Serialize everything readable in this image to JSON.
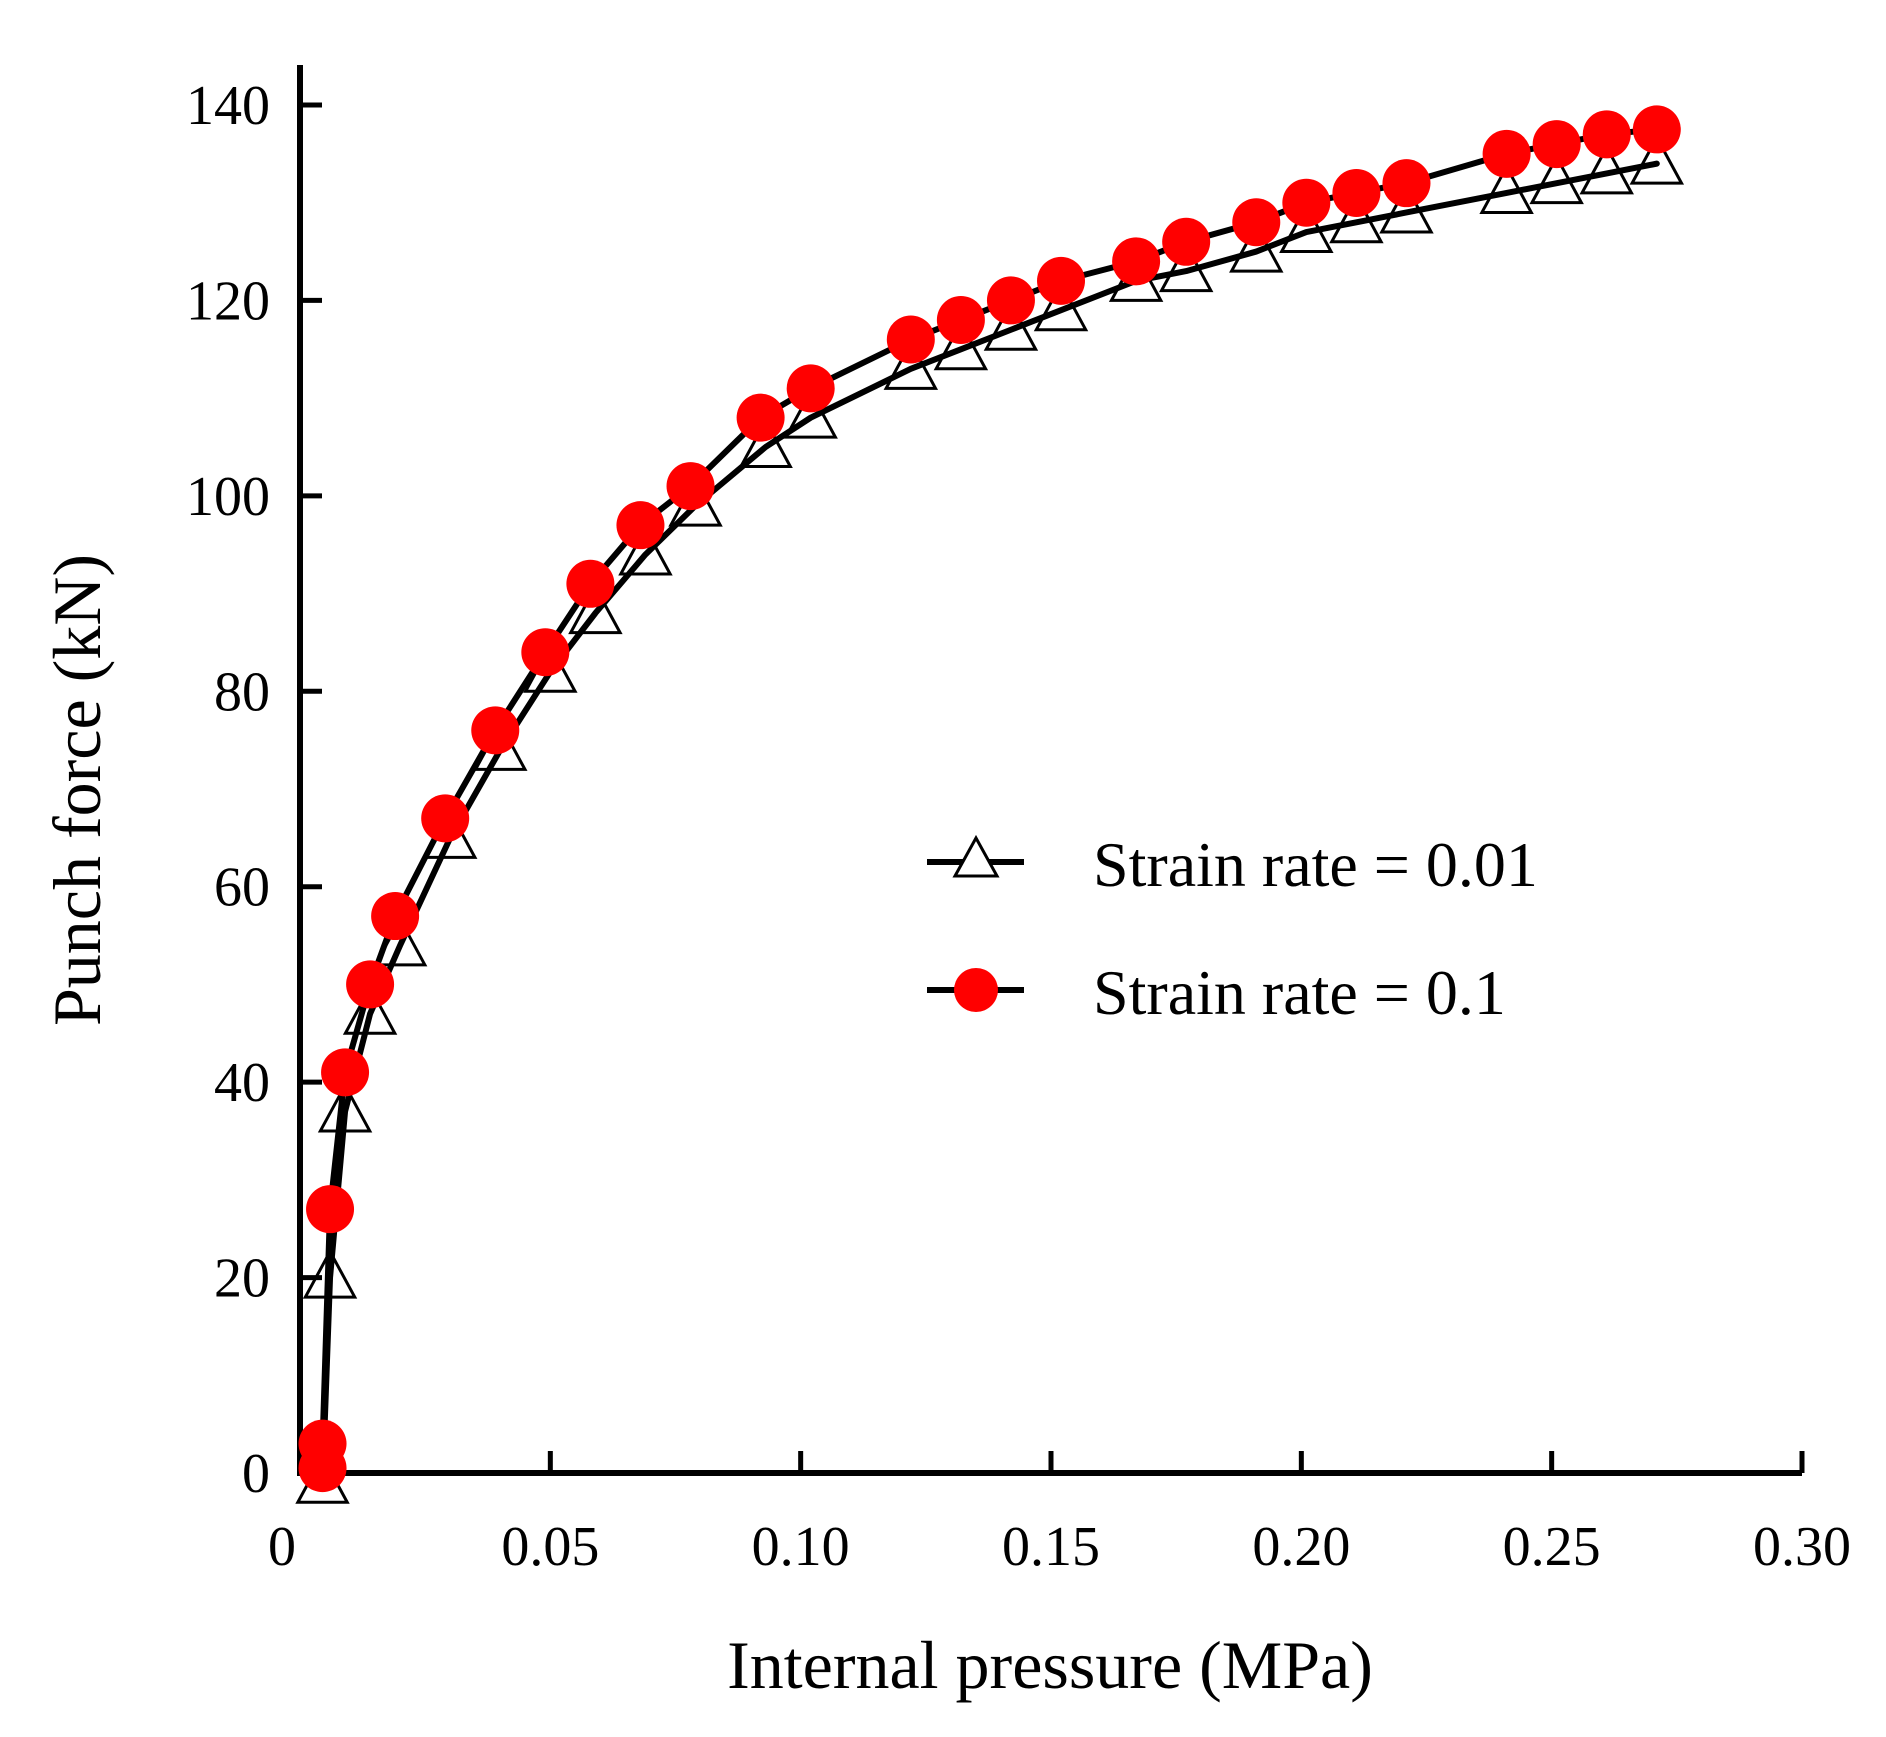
{
  "chart_data": {
    "type": "line",
    "title": "",
    "xlabel": "Internal pressure (MPa)",
    "ylabel": "Punch force (kN)",
    "xlim": [
      0,
      0.3
    ],
    "ylim": [
      0,
      140
    ],
    "xticks": [
      0,
      0.05,
      0.1,
      0.15,
      0.2,
      0.25,
      0.3
    ],
    "xtick_labels": [
      "0",
      "0.05",
      "0.10",
      "0.15",
      "0.20",
      "0.25",
      "0.30"
    ],
    "yticks": [
      0,
      20,
      40,
      60,
      80,
      100,
      120,
      140
    ],
    "ytick_labels": [
      "0",
      "20",
      "40",
      "60",
      "80",
      "100",
      "120",
      "140"
    ],
    "grid": false,
    "legend_position": "right-center",
    "series": [
      {
        "name": "Strain rate = 0.01",
        "marker": "open-triangle",
        "line_color": "#000000",
        "marker_color": "#000000",
        "x": [
          0.0045,
          0.006,
          0.009,
          0.014,
          0.02,
          0.03,
          0.04,
          0.05,
          0.059,
          0.069,
          0.079,
          0.093,
          0.102,
          0.122,
          0.132,
          0.142,
          0.152,
          0.167,
          0.177,
          0.191,
          0.201,
          0.211,
          0.221,
          0.241,
          0.251,
          0.261,
          0.271
        ],
        "y": [
          -1,
          20,
          37,
          47,
          54,
          65,
          74,
          82,
          88,
          94,
          99,
          105,
          108,
          113,
          115,
          117,
          119,
          122,
          123,
          125,
          127,
          128,
          129,
          131,
          132,
          133,
          134
        ]
      },
      {
        "name": "Strain rate = 0.1",
        "marker": "filled-circle",
        "line_color": "#000000",
        "marker_color": "#ff0000",
        "x": [
          0.0045,
          0.0045,
          0.006,
          0.009,
          0.014,
          0.019,
          0.029,
          0.039,
          0.049,
          0.058,
          0.068,
          0.078,
          0.092,
          0.102,
          0.122,
          0.132,
          0.142,
          0.152,
          0.167,
          0.177,
          0.191,
          0.201,
          0.211,
          0.221,
          0.241,
          0.251,
          0.261,
          0.271
        ],
        "y": [
          0.5,
          3,
          27,
          41,
          50,
          57,
          67,
          76,
          84,
          91,
          97,
          101,
          108,
          111,
          116,
          118,
          120,
          122,
          124,
          126,
          128,
          130,
          131,
          132,
          135,
          136,
          137,
          137.5
        ]
      }
    ]
  }
}
